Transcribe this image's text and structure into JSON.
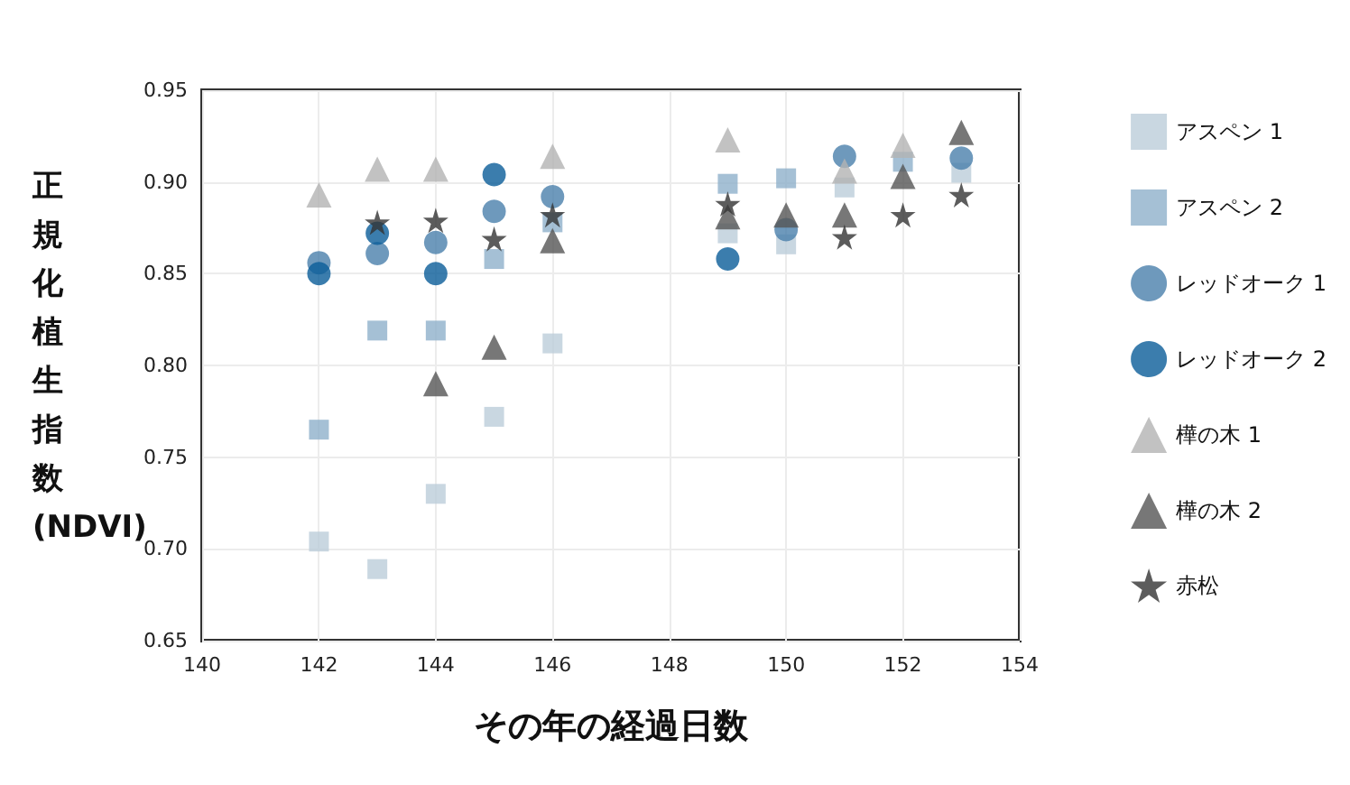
{
  "chart_data": {
    "type": "scatter",
    "xlabel": "その年の経過日数",
    "ylabel": "正規化植生指数(NDVI)",
    "xlim": [
      140,
      154
    ],
    "xticks": [
      140,
      142,
      144,
      146,
      148,
      150,
      152,
      154
    ],
    "ylim": [
      0.65,
      0.95
    ],
    "yticks": [
      0.65,
      {
        "value": 0.7,
        "label": "0.70"
      },
      0.75,
      {
        "value": 0.8,
        "label": "0.80"
      },
      0.85,
      {
        "value": 0.9,
        "label": "0.90"
      },
      0.95
    ],
    "grid": true,
    "legend": "right",
    "series": [
      {
        "name": "アスペン 1",
        "color": "#bccdd9",
        "marker": "square",
        "x": [
          142,
          143,
          144,
          145,
          146,
          149,
          150,
          151,
          153
        ],
        "values": [
          0.704,
          0.689,
          0.73,
          0.772,
          0.812,
          0.872,
          0.866,
          0.897,
          0.905
        ]
      },
      {
        "name": "アスペン 2",
        "color": "#8fb0cb",
        "marker": "square",
        "x": [
          142,
          143,
          144,
          145,
          146,
          149,
          150,
          152
        ],
        "values": [
          0.765,
          0.819,
          0.819,
          0.858,
          0.878,
          0.899,
          0.902,
          0.911
        ]
      },
      {
        "name": "レッドオーク 1",
        "color": "#4a7fab",
        "marker": "circle",
        "x": [
          142,
          143,
          144,
          145,
          146,
          150,
          151,
          153
        ],
        "values": [
          0.856,
          0.861,
          0.867,
          0.884,
          0.892,
          0.874,
          0.914,
          0.913
        ]
      },
      {
        "name": "レッドオーク 2",
        "color": "#0a5c99",
        "marker": "circle",
        "x": [
          142,
          143,
          144,
          145,
          149
        ],
        "values": [
          0.85,
          0.872,
          0.85,
          0.904,
          0.858
        ]
      },
      {
        "name": "樺の木 1",
        "color": "#b3b3b3",
        "marker": "triangle",
        "x": [
          142,
          143,
          144,
          146,
          149,
          151,
          152
        ],
        "values": [
          0.893,
          0.907,
          0.907,
          0.914,
          0.923,
          0.906,
          0.92
        ]
      },
      {
        "name": "樺の木 2",
        "color": "#555555",
        "marker": "triangle",
        "x": [
          144,
          145,
          146,
          149,
          150,
          151,
          152,
          153
        ],
        "values": [
          0.79,
          0.81,
          0.868,
          0.881,
          0.882,
          0.882,
          0.903,
          0.927
        ]
      },
      {
        "name": "赤松",
        "color": "#333333",
        "marker": "star",
        "x": [
          143,
          144,
          145,
          146,
          149,
          151,
          152,
          153
        ],
        "values": [
          0.878,
          0.879,
          0.869,
          0.882,
          0.888,
          0.87,
          0.882,
          0.893
        ]
      }
    ]
  }
}
